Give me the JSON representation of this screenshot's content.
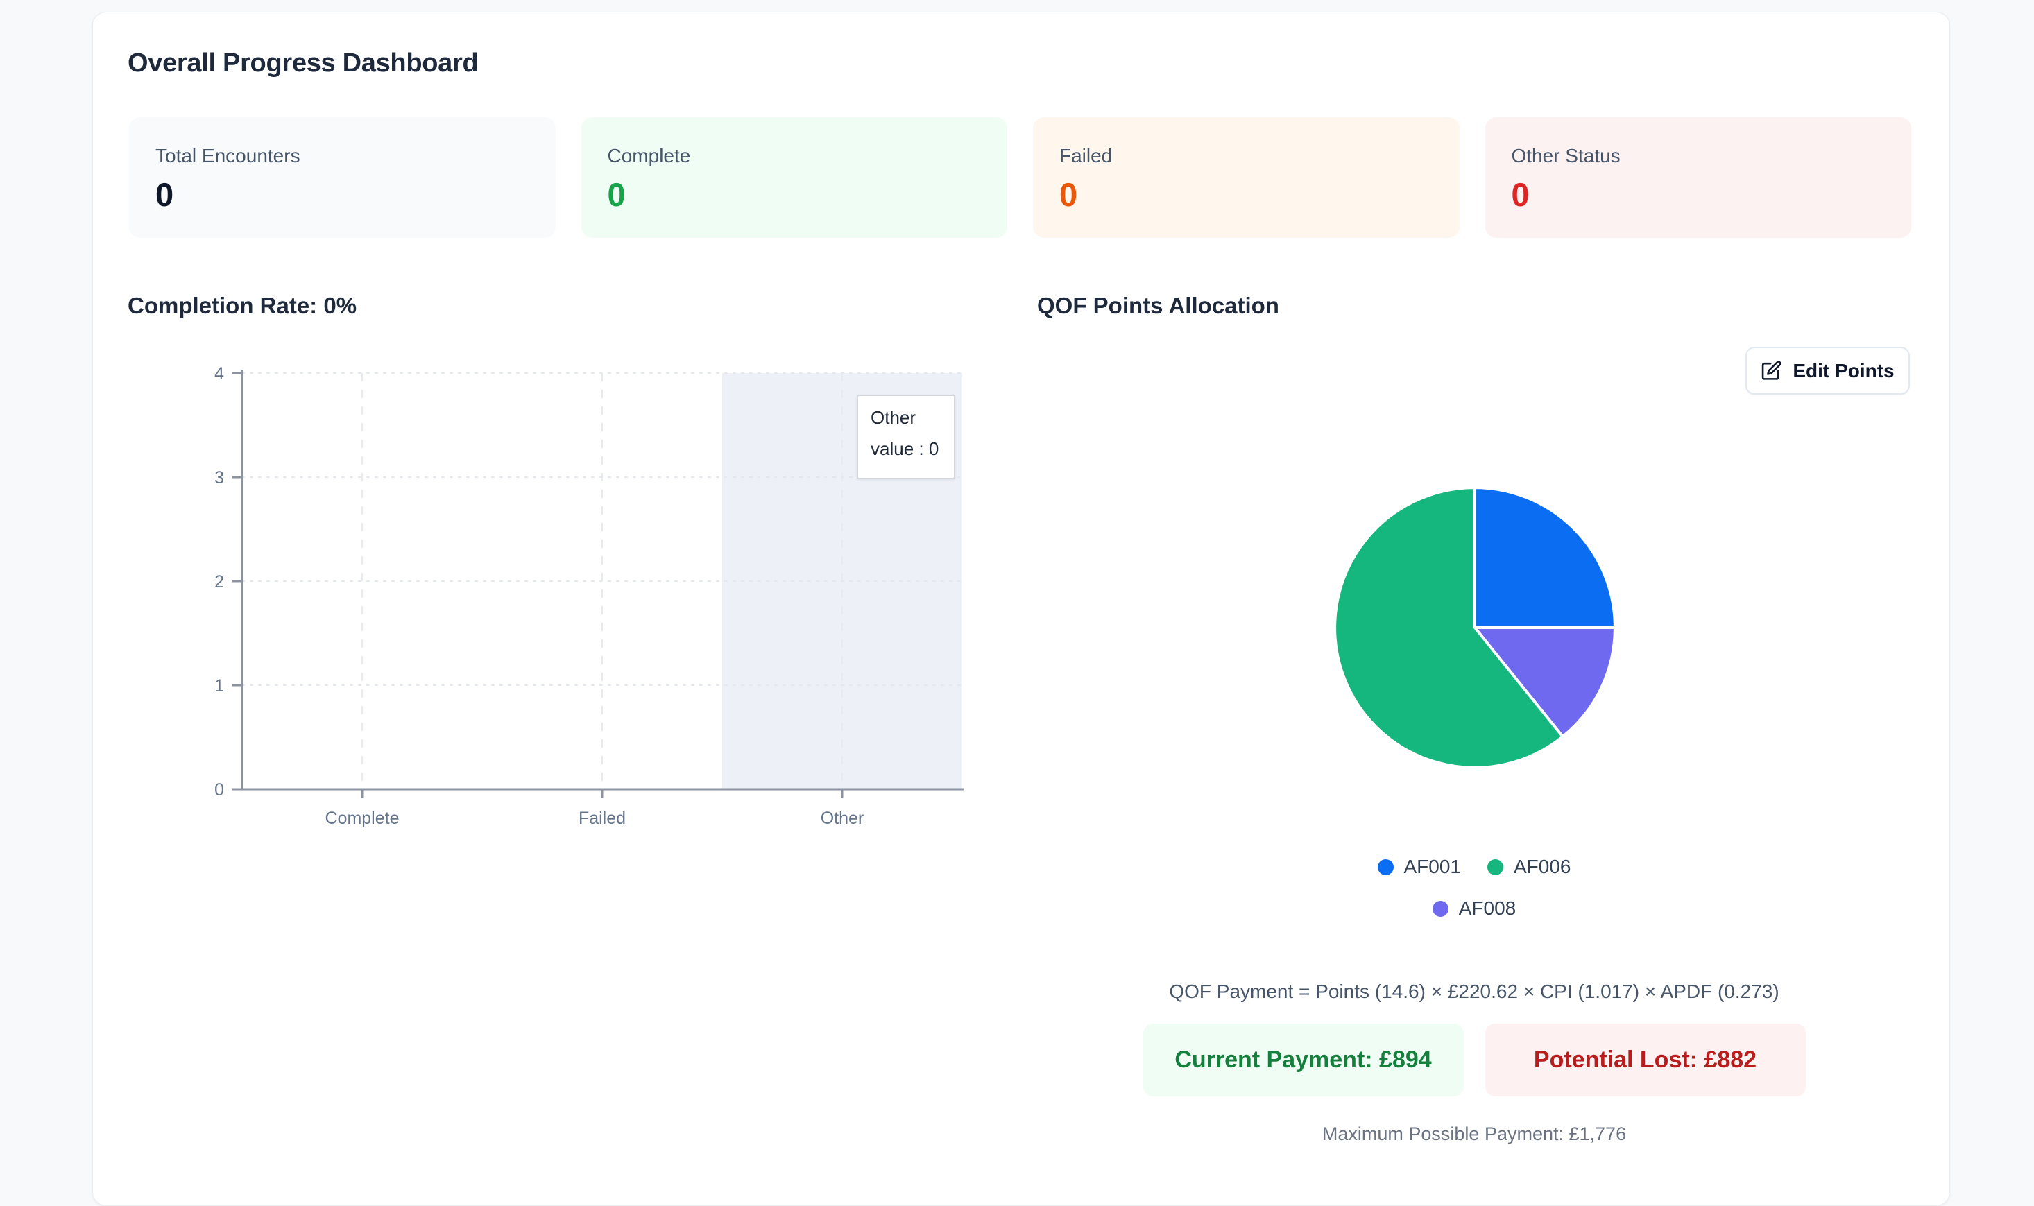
{
  "page": {
    "background": "#f7f9fb",
    "card_background": "#ffffff"
  },
  "dashboard": {
    "title": "Overall Progress Dashboard",
    "stats": [
      {
        "label": "Total Encounters",
        "value": "0",
        "bg": "#f8fafc",
        "value_color": "#0f172a"
      },
      {
        "label": "Complete",
        "value": "0",
        "bg": "#f0fdf4",
        "value_color": "#16a34a"
      },
      {
        "label": "Failed",
        "value": "0",
        "bg": "#fff7ed",
        "value_color": "#ea580c"
      },
      {
        "label": "Other Status",
        "value": "0",
        "bg": "#fdf2f2",
        "value_color": "#dc2626"
      }
    ],
    "qof": {
      "edit_button_label": "Edit Points",
      "formula": "QOF Payment = Points (14.6) × £220.62 × CPI (1.017) × APDF (0.273)",
      "current_payment": "Current Payment: £894",
      "potential_lost": "Potential Lost: £882",
      "max_payment": "Maximum Possible Payment: £1,776"
    }
  },
  "chart_data": [
    {
      "type": "bar",
      "title": "Completion Rate: 0%",
      "categories": [
        "Complete",
        "Failed",
        "Other"
      ],
      "values": [
        0,
        0,
        0
      ],
      "xlabel": "",
      "ylabel": "",
      "ylim": [
        0,
        4
      ],
      "yticks": [
        0,
        1,
        2,
        3,
        4
      ],
      "grid": true,
      "legend_position": "none",
      "highlighted_category": "Other",
      "highlight_band_color": "#edf1f7",
      "tooltip": {
        "title": "Other",
        "line": "value : 0"
      }
    },
    {
      "type": "pie",
      "title": "QOF Points Allocation",
      "slices": [
        {
          "label": "AF001",
          "percent": 25.0,
          "color": "#0b6df2"
        },
        {
          "label": "AF008",
          "percent": 14.2,
          "color": "#6e69ef"
        },
        {
          "label": "AF006",
          "percent": 60.8,
          "color": "#15b77f"
        }
      ],
      "start_angle_deg": 0,
      "direction": "clockwise",
      "legend_rows": [
        [
          "AF001",
          "AF006"
        ],
        [
          "AF008"
        ]
      ],
      "legend_position": "bottom"
    }
  ]
}
